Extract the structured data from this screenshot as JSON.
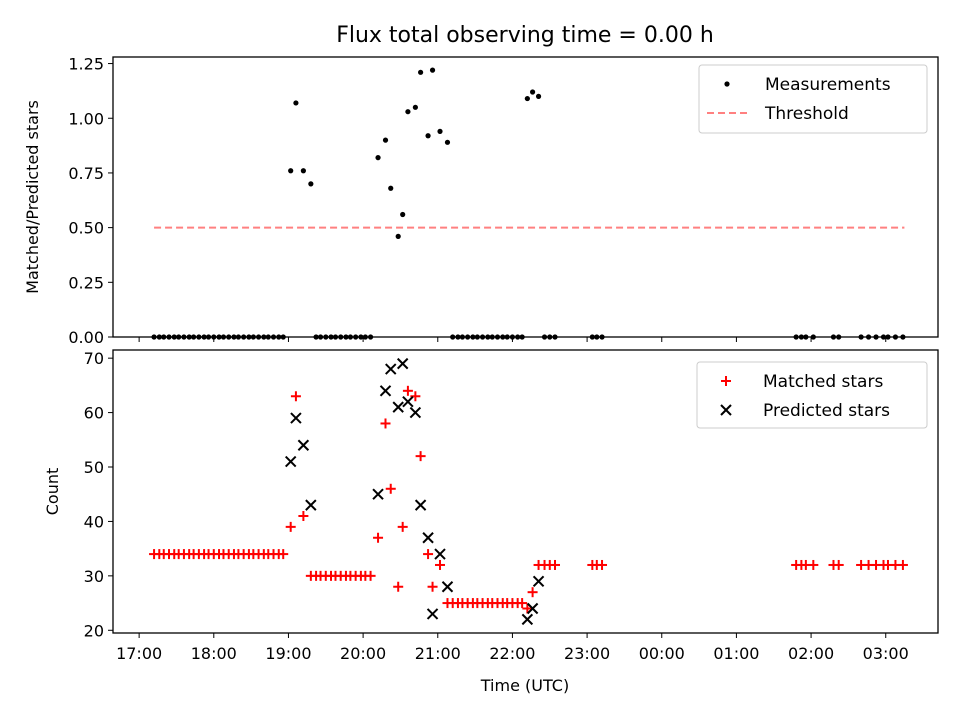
{
  "chart_data": {
    "title": "Flux total observing time = 0.00 h",
    "xlabel": "Time (UTC)",
    "x_tick_labels": [
      "17:00",
      "18:00",
      "19:00",
      "20:00",
      "21:00",
      "22:00",
      "23:00",
      "00:00",
      "01:00",
      "02:00",
      "03:00"
    ],
    "x_unit": "hours since 17:00",
    "xlim": [
      -0.35,
      10.7
    ],
    "panels": [
      {
        "type": "scatter",
        "ylabel": "Matched/Predicted stars",
        "ylim": [
          0,
          1.28
        ],
        "yticks": [
          "0.00",
          "0.25",
          "0.50",
          "0.75",
          "1.00",
          "1.25"
        ],
        "legend_location": "top-right",
        "threshold": {
          "name": "Threshold",
          "value": 0.5,
          "x_range": [
            0.2,
            10.25
          ],
          "color": "#ff8080"
        },
        "series": [
          {
            "name": "Measurements",
            "color": "#000000",
            "points": [
              [
                0.2,
                0
              ],
              [
                0.27,
                0
              ],
              [
                0.33,
                0
              ],
              [
                0.4,
                0
              ],
              [
                0.47,
                0
              ],
              [
                0.53,
                0
              ],
              [
                0.6,
                0
              ],
              [
                0.67,
                0
              ],
              [
                0.73,
                0
              ],
              [
                0.8,
                0
              ],
              [
                0.87,
                0
              ],
              [
                0.93,
                0
              ],
              [
                1.0,
                0
              ],
              [
                1.07,
                0
              ],
              [
                1.13,
                0
              ],
              [
                1.2,
                0
              ],
              [
                1.27,
                0
              ],
              [
                1.33,
                0
              ],
              [
                1.4,
                0
              ],
              [
                1.47,
                0
              ],
              [
                1.53,
                0
              ],
              [
                1.6,
                0
              ],
              [
                1.67,
                0
              ],
              [
                1.73,
                0
              ],
              [
                1.8,
                0
              ],
              [
                1.87,
                0
              ],
              [
                1.93,
                0
              ],
              [
                2.03,
                0.76
              ],
              [
                2.1,
                1.07
              ],
              [
                2.2,
                0.76
              ],
              [
                2.3,
                0.7
              ],
              [
                2.37,
                0
              ],
              [
                2.43,
                0
              ],
              [
                2.5,
                0
              ],
              [
                2.57,
                0
              ],
              [
                2.63,
                0
              ],
              [
                2.7,
                0
              ],
              [
                2.77,
                0
              ],
              [
                2.83,
                0
              ],
              [
                2.9,
                0
              ],
              [
                2.97,
                0
              ],
              [
                3.03,
                0
              ],
              [
                3.1,
                0
              ],
              [
                3.2,
                0.82
              ],
              [
                3.3,
                0.9
              ],
              [
                3.37,
                0.68
              ],
              [
                3.47,
                0.46
              ],
              [
                3.53,
                0.56
              ],
              [
                3.6,
                1.03
              ],
              [
                3.7,
                1.05
              ],
              [
                3.77,
                1.21
              ],
              [
                3.87,
                0.92
              ],
              [
                3.93,
                1.22
              ],
              [
                4.03,
                0.94
              ],
              [
                4.13,
                0.89
              ],
              [
                4.2,
                0
              ],
              [
                4.27,
                0
              ],
              [
                4.33,
                0
              ],
              [
                4.4,
                0
              ],
              [
                4.47,
                0
              ],
              [
                4.53,
                0
              ],
              [
                4.6,
                0
              ],
              [
                4.67,
                0
              ],
              [
                4.73,
                0
              ],
              [
                4.8,
                0
              ],
              [
                4.87,
                0
              ],
              [
                4.93,
                0
              ],
              [
                5.0,
                0
              ],
              [
                5.07,
                0
              ],
              [
                5.13,
                0
              ],
              [
                5.2,
                1.09
              ],
              [
                5.27,
                1.12
              ],
              [
                5.35,
                1.1
              ],
              [
                5.43,
                0
              ],
              [
                5.5,
                0
              ],
              [
                5.57,
                0
              ],
              [
                6.07,
                0
              ],
              [
                6.13,
                0
              ],
              [
                6.2,
                0
              ],
              [
                8.8,
                0
              ],
              [
                8.87,
                0
              ],
              [
                8.93,
                0
              ],
              [
                9.03,
                0
              ],
              [
                9.3,
                0
              ],
              [
                9.37,
                0
              ],
              [
                9.67,
                0
              ],
              [
                9.77,
                0
              ],
              [
                9.87,
                0
              ],
              [
                9.97,
                0
              ],
              [
                10.03,
                0
              ],
              [
                10.13,
                0
              ],
              [
                10.23,
                0
              ]
            ]
          }
        ]
      },
      {
        "type": "scatter",
        "ylabel": "Count",
        "ylim": [
          19.5,
          71.5
        ],
        "yticks": [
          "20",
          "30",
          "40",
          "50",
          "60",
          "70"
        ],
        "legend_location": "top-right",
        "series": [
          {
            "name": "Matched stars",
            "marker": "+",
            "color": "#ff0000",
            "points": [
              [
                0.2,
                34
              ],
              [
                0.27,
                34
              ],
              [
                0.33,
                34
              ],
              [
                0.4,
                34
              ],
              [
                0.47,
                34
              ],
              [
                0.53,
                34
              ],
              [
                0.6,
                34
              ],
              [
                0.67,
                34
              ],
              [
                0.73,
                34
              ],
              [
                0.8,
                34
              ],
              [
                0.87,
                34
              ],
              [
                0.93,
                34
              ],
              [
                1.0,
                34
              ],
              [
                1.07,
                34
              ],
              [
                1.13,
                34
              ],
              [
                1.2,
                34
              ],
              [
                1.27,
                34
              ],
              [
                1.33,
                34
              ],
              [
                1.4,
                34
              ],
              [
                1.47,
                34
              ],
              [
                1.53,
                34
              ],
              [
                1.6,
                34
              ],
              [
                1.67,
                34
              ],
              [
                1.73,
                34
              ],
              [
                1.8,
                34
              ],
              [
                1.87,
                34
              ],
              [
                1.93,
                34
              ],
              [
                2.03,
                39
              ],
              [
                2.1,
                63
              ],
              [
                2.2,
                41
              ],
              [
                2.3,
                30
              ],
              [
                2.37,
                30
              ],
              [
                2.43,
                30
              ],
              [
                2.5,
                30
              ],
              [
                2.57,
                30
              ],
              [
                2.63,
                30
              ],
              [
                2.7,
                30
              ],
              [
                2.77,
                30
              ],
              [
                2.83,
                30
              ],
              [
                2.9,
                30
              ],
              [
                2.97,
                30
              ],
              [
                3.03,
                30
              ],
              [
                3.1,
                30
              ],
              [
                3.2,
                37
              ],
              [
                3.3,
                58
              ],
              [
                3.37,
                46
              ],
              [
                3.47,
                28
              ],
              [
                3.53,
                39
              ],
              [
                3.6,
                64
              ],
              [
                3.7,
                63
              ],
              [
                3.77,
                52
              ],
              [
                3.87,
                34
              ],
              [
                3.93,
                28
              ],
              [
                4.03,
                32
              ],
              [
                4.13,
                25
              ],
              [
                4.2,
                25
              ],
              [
                4.27,
                25
              ],
              [
                4.33,
                25
              ],
              [
                4.4,
                25
              ],
              [
                4.47,
                25
              ],
              [
                4.53,
                25
              ],
              [
                4.6,
                25
              ],
              [
                4.67,
                25
              ],
              [
                4.73,
                25
              ],
              [
                4.8,
                25
              ],
              [
                4.87,
                25
              ],
              [
                4.93,
                25
              ],
              [
                5.0,
                25
              ],
              [
                5.07,
                25
              ],
              [
                5.13,
                25
              ],
              [
                5.2,
                24
              ],
              [
                5.27,
                27
              ],
              [
                5.35,
                32
              ],
              [
                5.43,
                32
              ],
              [
                5.5,
                32
              ],
              [
                5.57,
                32
              ],
              [
                6.07,
                32
              ],
              [
                6.13,
                32
              ],
              [
                6.2,
                32
              ],
              [
                8.8,
                32
              ],
              [
                8.87,
                32
              ],
              [
                8.93,
                32
              ],
              [
                9.03,
                32
              ],
              [
                9.3,
                32
              ],
              [
                9.37,
                32
              ],
              [
                9.67,
                32
              ],
              [
                9.77,
                32
              ],
              [
                9.87,
                32
              ],
              [
                9.97,
                32
              ],
              [
                10.03,
                32
              ],
              [
                10.13,
                32
              ],
              [
                10.23,
                32
              ]
            ]
          },
          {
            "name": "Predicted stars",
            "marker": "x",
            "color": "#000000",
            "points": [
              [
                2.03,
                51
              ],
              [
                2.1,
                59
              ],
              [
                2.2,
                54
              ],
              [
                2.3,
                43
              ],
              [
                3.2,
                45
              ],
              [
                3.3,
                64
              ],
              [
                3.37,
                68
              ],
              [
                3.47,
                61
              ],
              [
                3.53,
                69
              ],
              [
                3.6,
                62
              ],
              [
                3.7,
                60
              ],
              [
                3.77,
                43
              ],
              [
                3.87,
                37
              ],
              [
                3.93,
                23
              ],
              [
                4.03,
                34
              ],
              [
                4.13,
                28
              ],
              [
                5.2,
                22
              ],
              [
                5.27,
                24
              ],
              [
                5.35,
                29
              ]
            ]
          }
        ]
      }
    ]
  }
}
